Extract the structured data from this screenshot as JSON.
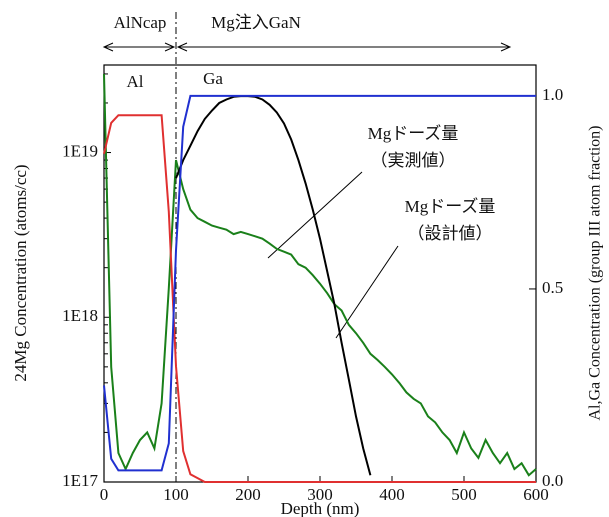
{
  "chart_data": {
    "type": "line",
    "xlabel": "Depth (nm)",
    "ylabel": "24Mg Concentration (atoms/cc)",
    "y2label": "Al,Ga Concentration (group III atom fraction)",
    "ylog": true,
    "xlim": [
      0,
      600
    ],
    "xticks": [
      0,
      100,
      200,
      300,
      400,
      500,
      600
    ],
    "ylim": [
      1e+17,
      3.4e+19
    ],
    "yticks": [
      {
        "value": 1e+17,
        "label": "1E17"
      },
      {
        "value": 1e+18,
        "label": "1E18"
      },
      {
        "value": 1e+19,
        "label": "1E19"
      }
    ],
    "y2lim": [
      0,
      1.08
    ],
    "y2ticks": [
      {
        "value": 0,
        "label": "0.0"
      },
      {
        "value": 0.5,
        "label": "0.5"
      },
      {
        "value": 1,
        "label": "1.0"
      }
    ],
    "divider": 100,
    "regions": [
      "AlNcap",
      "Mg注入GaN"
    ],
    "x": [
      0,
      10,
      20,
      30,
      40,
      50,
      60,
      70,
      80,
      90,
      100,
      110,
      120,
      130,
      140,
      150,
      160,
      170,
      180,
      190,
      200,
      210,
      220,
      230,
      240,
      250,
      260,
      270,
      280,
      290,
      300,
      310,
      320,
      330,
      340,
      350,
      360,
      370,
      380,
      390,
      400,
      410,
      420,
      430,
      440,
      450,
      460,
      470,
      480,
      490,
      500,
      510,
      520,
      530,
      540,
      550,
      560,
      570,
      580,
      590,
      600
    ],
    "series": [
      {
        "color": "#1a801a",
        "values": [
          3e+19,
          5e+17,
          1.5e+17,
          1.2e+17,
          1.5e+17,
          1.8e+17,
          2e+17,
          1.6e+17,
          3e+17,
          1.5e+18,
          9e+18,
          6e+18,
          4.5e+18,
          4e+18,
          3.8e+18,
          3.6e+18,
          3.5e+18,
          3.4e+18,
          3.2e+18,
          3.3e+18,
          3.2e+18,
          3.1e+18,
          3e+18,
          2.8e+18,
          2.6e+18,
          2.5e+18,
          2.4e+18,
          2.1e+18,
          2e+18,
          1.8e+18,
          1.6e+18,
          1.4e+18,
          1.2e+18,
          1.1e+18,
          9e+17,
          8e+17,
          7e+17,
          6e+17,
          5.5e+17,
          5e+17,
          4.5e+17,
          4e+17,
          3.5e+17,
          3.2e+17,
          3e+17,
          2.5e+17,
          2.3e+17,
          2e+17,
          1.8e+17,
          1.5e+17,
          2e+17,
          1.6e+17,
          1.4e+17,
          1.8e+17,
          1.5e+17,
          1.3e+17,
          1.5e+17,
          1.2e+17,
          1.3e+17,
          1.1e+17,
          1.2e+17
        ]
      },
      {
        "color": "#000000",
        "values": [
          null,
          null,
          null,
          null,
          null,
          null,
          null,
          null,
          null,
          null,
          7e+18,
          9e+18,
          1.1e+19,
          1.35e+19,
          1.6e+19,
          1.8e+19,
          2e+19,
          2.1e+19,
          2.18e+19,
          2.2e+19,
          2.2e+19,
          2.18e+19,
          2.1e+19,
          1.95e+19,
          1.75e+19,
          1.5e+19,
          1.2e+19,
          9e+18,
          6.5e+18,
          4.5e+18,
          3e+18,
          1.9e+18,
          1.2e+18,
          7e+17,
          4.2e+17,
          2.5e+17,
          1.6e+17,
          1.1e+17,
          null,
          null,
          null,
          null,
          null,
          null,
          null,
          null,
          null,
          null,
          null,
          null,
          null,
          null,
          null,
          null,
          null,
          null,
          null,
          null,
          null,
          null,
          null
        ]
      },
      {
        "name": "Al",
        "color": "#e03030",
        "axis": "y2",
        "values": [
          0.85,
          0.93,
          0.95,
          0.95,
          0.95,
          0.95,
          0.95,
          0.95,
          0.95,
          0.7,
          0.3,
          0.08,
          0.02,
          0.01,
          0,
          0,
          0,
          0,
          0,
          0,
          0,
          0,
          0,
          0,
          0,
          0,
          0,
          0,
          0,
          0,
          0,
          0,
          0,
          0,
          0,
          0,
          0,
          0,
          0,
          0,
          0,
          0,
          0,
          0,
          0,
          0,
          0,
          0,
          0,
          0,
          0,
          0,
          0,
          0,
          0,
          0,
          0,
          0,
          0,
          0,
          0
        ]
      },
      {
        "name": "Ga",
        "color": "#2030d0",
        "axis": "y2",
        "values": [
          0.25,
          0.06,
          0.03,
          0.03,
          0.03,
          0.03,
          0.03,
          0.03,
          0.03,
          0.1,
          0.6,
          0.92,
          1,
          1,
          1,
          1,
          1,
          1,
          1,
          1,
          1,
          1,
          1,
          1,
          1,
          1,
          1,
          1,
          1,
          1,
          1,
          1,
          1,
          1,
          1,
          1,
          1,
          1,
          1,
          1,
          1,
          1,
          1,
          1,
          1,
          1,
          1,
          1,
          1,
          1,
          1,
          1,
          1,
          1,
          1,
          1,
          1,
          1,
          1,
          1,
          1
        ]
      }
    ],
    "annotations": [
      [
        "Mgドーズ量",
        "（実測値）"
      ],
      [
        "Mgドーズ量",
        "（設計値）"
      ]
    ]
  }
}
